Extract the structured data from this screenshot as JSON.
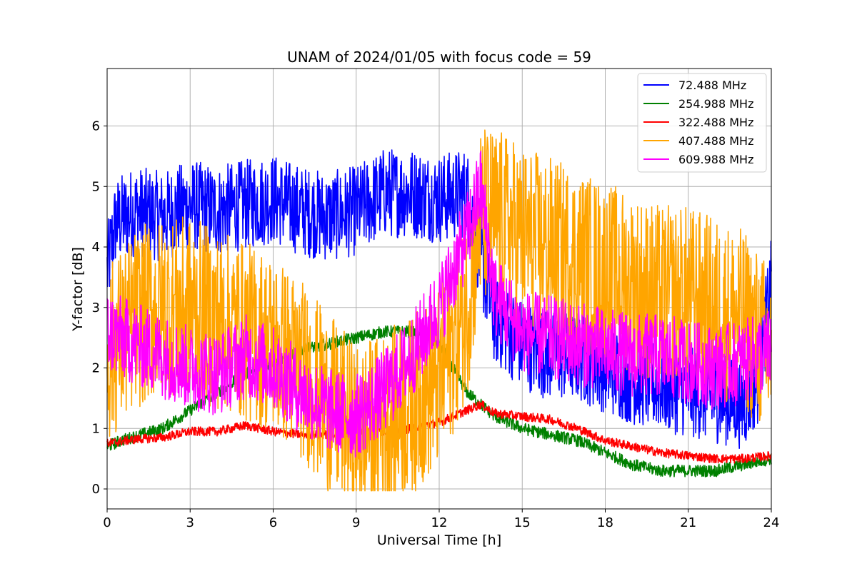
{
  "chart_data": {
    "type": "line",
    "title": "UNAM of 2024/01/05 with focus code = 59",
    "xlabel": "Universal Time [h]",
    "ylabel": "Y-factor [dB]",
    "xlim": [
      0,
      24
    ],
    "ylim": [
      -0.33,
      6.95
    ],
    "xticks": [
      0,
      3,
      6,
      9,
      12,
      15,
      18,
      21,
      24
    ],
    "yticks": [
      0,
      1,
      2,
      3,
      4,
      5,
      6
    ],
    "grid": true,
    "legend_position": "top-right",
    "series": [
      {
        "name": " 72.488 MHz",
        "color": "#0000ff",
        "noise": 1.5,
        "x": [
          0.0,
          0.3,
          1.0,
          2.0,
          3.0,
          4.0,
          5.0,
          6.0,
          7.0,
          8.0,
          9.0,
          10.0,
          11.0,
          12.0,
          13.0,
          13.5,
          14.0,
          14.5,
          15.0,
          16.0,
          17.0,
          18.0,
          19.0,
          20.0,
          21.0,
          22.0,
          23.0,
          23.5,
          24.0
        ],
        "values": [
          3.6,
          4.4,
          4.6,
          4.5,
          4.7,
          4.6,
          4.7,
          4.8,
          4.6,
          4.5,
          4.6,
          4.9,
          4.9,
          4.8,
          4.9,
          3.8,
          2.8,
          2.6,
          2.4,
          2.2,
          2.2,
          2.0,
          1.8,
          1.7,
          1.6,
          1.5,
          1.4,
          1.8,
          3.4
        ]
      },
      {
        "name": "254.988 MHz",
        "color": "#008000",
        "noise": 0.2,
        "x": [
          0.0,
          0.5,
          2.0,
          3.0,
          4.0,
          5.0,
          6.0,
          7.0,
          8.0,
          9.0,
          10.0,
          11.0,
          12.0,
          13.0,
          13.5,
          14.0,
          15.0,
          16.0,
          17.0,
          18.0,
          19.0,
          20.0,
          21.0,
          22.0,
          23.0,
          24.0
        ],
        "values": [
          0.7,
          0.8,
          1.0,
          1.3,
          1.6,
          1.9,
          2.1,
          2.3,
          2.4,
          2.5,
          2.6,
          2.6,
          2.4,
          1.6,
          1.4,
          1.2,
          1.0,
          0.9,
          0.8,
          0.6,
          0.4,
          0.3,
          0.3,
          0.3,
          0.4,
          0.5
        ]
      },
      {
        "name": "322.488 MHz",
        "color": "#ff0000",
        "noise": 0.15,
        "x": [
          0.0,
          1.0,
          2.0,
          2.5,
          3.0,
          4.0,
          5.0,
          6.0,
          7.0,
          8.0,
          9.0,
          10.0,
          11.0,
          12.0,
          13.0,
          13.5,
          14.0,
          15.0,
          16.0,
          17.0,
          18.0,
          19.0,
          20.0,
          21.0,
          22.0,
          23.0,
          24.0
        ],
        "values": [
          0.75,
          0.82,
          0.85,
          0.9,
          0.95,
          0.95,
          1.05,
          0.95,
          0.9,
          0.9,
          0.95,
          0.95,
          1.0,
          1.1,
          1.3,
          1.4,
          1.25,
          1.2,
          1.15,
          1.0,
          0.8,
          0.7,
          0.6,
          0.55,
          0.5,
          0.5,
          0.55
        ]
      },
      {
        "name": "407.488 MHz",
        "color": "#ffa500",
        "noise": 3.0,
        "x": [
          0.0,
          1.0,
          2.0,
          3.0,
          4.0,
          5.0,
          6.0,
          7.0,
          8.0,
          9.0,
          10.0,
          11.0,
          12.0,
          13.0,
          13.5,
          14.0,
          15.0,
          16.0,
          17.0,
          18.0,
          19.0,
          20.0,
          21.0,
          22.0,
          23.0,
          24.0
        ],
        "values": [
          2.2,
          2.8,
          3.0,
          3.0,
          2.8,
          2.6,
          2.4,
          2.0,
          1.4,
          0.9,
          1.1,
          1.4,
          1.8,
          3.0,
          4.5,
          4.5,
          4.2,
          4.0,
          3.8,
          3.6,
          3.4,
          3.2,
          3.2,
          3.0,
          2.8,
          2.2
        ]
      },
      {
        "name": "609.988 MHz",
        "color": "#ff00ff",
        "noise": 1.4,
        "x": [
          0.0,
          1.0,
          2.0,
          3.0,
          4.0,
          5.0,
          6.0,
          7.0,
          8.0,
          9.0,
          10.0,
          11.0,
          12.0,
          13.0,
          13.5,
          14.0,
          15.0,
          16.0,
          17.0,
          18.0,
          19.0,
          20.0,
          21.0,
          22.0,
          23.0,
          24.0
        ],
        "values": [
          2.6,
          2.4,
          2.2,
          2.0,
          1.9,
          2.2,
          2.0,
          1.6,
          1.3,
          1.2,
          1.6,
          2.2,
          3.0,
          4.2,
          5.0,
          3.2,
          2.6,
          2.5,
          2.4,
          2.3,
          2.2,
          2.2,
          2.1,
          2.0,
          2.1,
          2.3
        ]
      }
    ]
  }
}
